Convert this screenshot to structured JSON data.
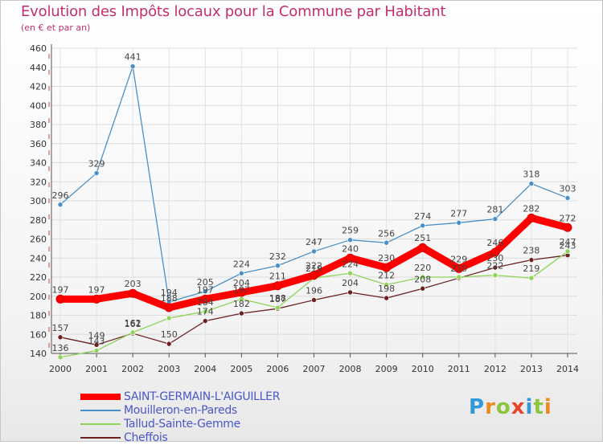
{
  "header": {
    "title": "Evolution des Impôts locaux pour la Commune par Habitant",
    "subtitle": "(en € et par an)"
  },
  "logo": {
    "letters": [
      "P",
      "r",
      "o",
      "x",
      "i",
      "t",
      "i"
    ],
    "colors": [
      "#2f9ad6",
      "#e98c1d",
      "#8cc63f",
      "#e9452a",
      "#2f9ad6",
      "#8cc63f",
      "#e98c1d"
    ]
  },
  "chart_data": {
    "type": "line",
    "x": [
      2000,
      2001,
      2002,
      2003,
      2004,
      2005,
      2006,
      2007,
      2008,
      2009,
      2010,
      2011,
      2012,
      2013,
      2014
    ],
    "ylim": [
      130,
      460
    ],
    "yticks": [
      140,
      160,
      180,
      200,
      220,
      240,
      260,
      280,
      300,
      320,
      340,
      360,
      380,
      400,
      420,
      440,
      460
    ],
    "grid": true,
    "legend_position": "bottom-left",
    "series": [
      {
        "name": "SAINT-GERMAIN-L'AIGUILLER",
        "color": "#ff0000",
        "values": [
          197,
          197,
          203,
          188,
          197,
          204,
          211,
          222,
          240,
          230,
          251,
          229,
          246,
          282,
          272
        ],
        "labels": [
          "197",
          "197",
          "203",
          "188",
          "197",
          "204",
          "211",
          "222",
          "240",
          "230",
          "251",
          "229",
          "246",
          "282",
          "272"
        ]
      },
      {
        "name": "Mouilleron-en-Pareds",
        "color": "#4a90c8",
        "values": [
          296,
          329,
          441,
          194,
          205,
          224,
          232,
          247,
          259,
          256,
          274,
          277,
          281,
          318,
          303
        ],
        "labels": [
          "296",
          "329",
          "441",
          "194",
          "205",
          "224",
          "232",
          "247",
          "259",
          "256",
          "274",
          "277",
          "281",
          "318",
          "303"
        ]
      },
      {
        "name": "Tallud-Sainte-Gemme",
        "color": "#8fd35a",
        "values": [
          136,
          143,
          162,
          177,
          184,
          197,
          188,
          219,
          224,
          212,
          220,
          220,
          222,
          219,
          247
        ],
        "labels": [
          "136",
          "143",
          "162",
          "",
          "184",
          "197",
          "188",
          "219",
          "224",
          "212",
          "220",
          "",
          "222",
          "219",
          "247"
        ]
      },
      {
        "name": "Cheffois",
        "color": "#6b2020",
        "values": [
          157,
          149,
          161,
          150,
          174,
          182,
          187,
          196,
          204,
          198,
          208,
          219,
          230,
          238,
          243
        ],
        "labels": [
          "157",
          "149",
          "161",
          "150",
          "174",
          "182",
          "187",
          "196",
          "204",
          "198",
          "208",
          "219",
          "230",
          "238",
          "243"
        ]
      }
    ]
  }
}
